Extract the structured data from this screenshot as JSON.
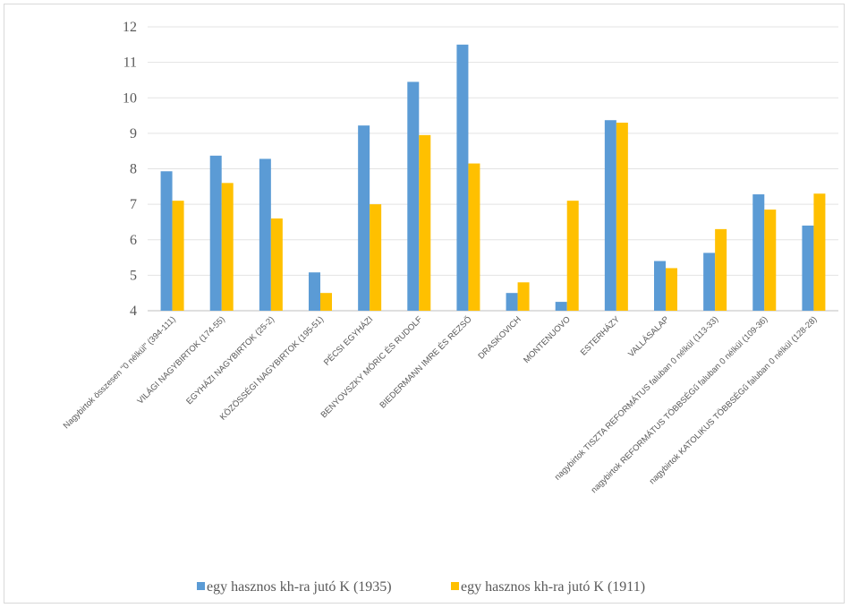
{
  "chart_data": {
    "type": "bar",
    "title": "",
    "xlabel": "",
    "ylabel": "",
    "ylim": [
      4,
      12
    ],
    "yticks": [
      4,
      5,
      6,
      7,
      8,
      9,
      10,
      11,
      12
    ],
    "grid": true,
    "legend_position": "bottom",
    "categories": [
      "Nagybirtok összesen \"0 nélkül\" (394-111)",
      "VILÁGI NAGYBIRTOK (174-55)",
      "EGYHÁZI NAGYBIRTOK (25-2)",
      "KÖZÖSSÉGI NAGYBIRTOK (195-51)",
      "PÉCSI EGYHÁZI",
      "BENYOVSZKY MÓRIC ÉS RUDOLF",
      "BIEDERMANN IMRE ÉS REZSŐ",
      "DRASKOVICH",
      "MONTENUOVO",
      "ESTERHÁZY",
      "VALLÁSALAP",
      "nagybirtok TISZTA REFORMÁTUS faluban 0 nélkül (113-33)",
      "nagybirtok REFORMÁTUS TÖBBSÉGű faluban 0 nélkül (109-36)",
      "nagybirtok KATOLIKUS TÖBBSÉGű faluban 0 nélkül (128-28)"
    ],
    "series": [
      {
        "name": "egy hasznos kh-ra jutó K (1935)",
        "color": "#5b9bd5",
        "values": [
          7.93,
          8.37,
          8.28,
          5.08,
          9.22,
          10.45,
          11.5,
          4.5,
          4.25,
          9.37,
          5.4,
          5.63,
          7.28,
          6.4
        ]
      },
      {
        "name": "egy hasznos kh-ra jutó K (1911)",
        "color": "#ffc000",
        "values": [
          7.1,
          7.6,
          6.6,
          4.5,
          7.0,
          8.95,
          8.15,
          4.8,
          7.1,
          9.3,
          5.2,
          6.3,
          6.85,
          7.3
        ]
      }
    ]
  }
}
